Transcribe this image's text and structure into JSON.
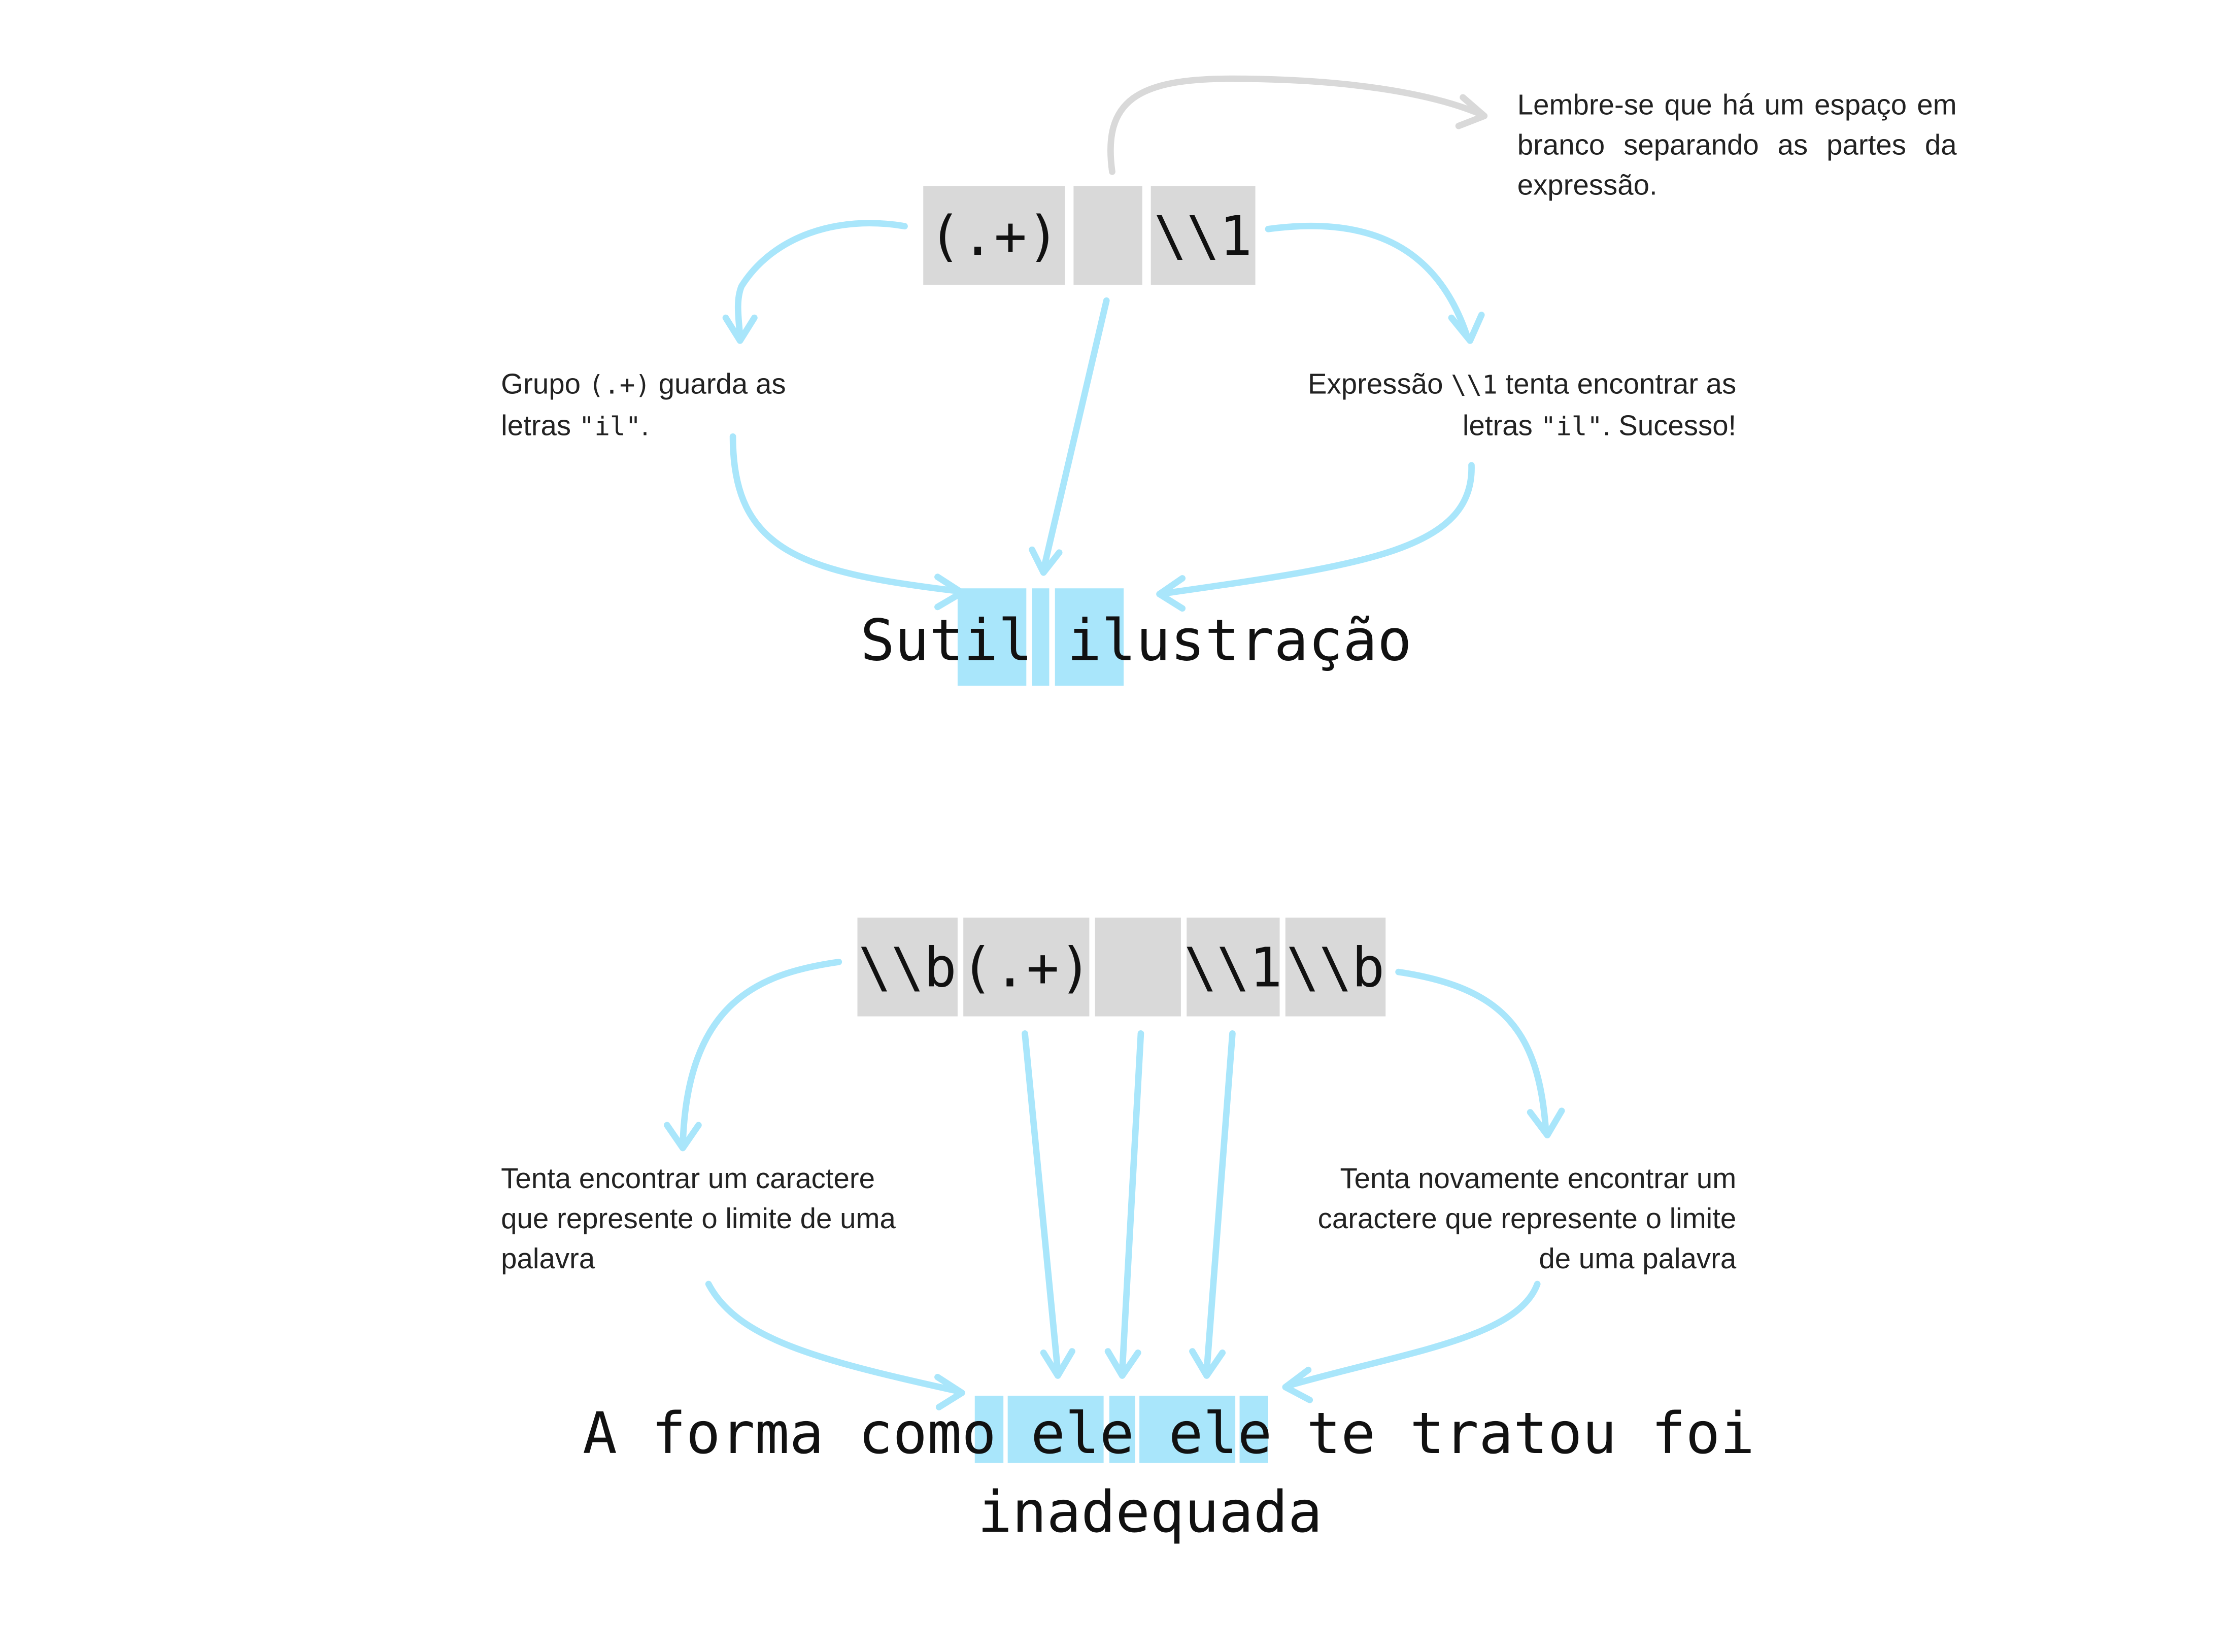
{
  "top": {
    "regex_boxes": [
      "(.+)",
      "",
      "\\\\1"
    ],
    "note_whitespace": "Lembre-se que há um espaço em branco separando as partes da expressão.",
    "note_left": {
      "pre": "Grupo ",
      "code1": "(.+)",
      "mid": " guarda as letras ",
      "code2": "\"il\"",
      "post": "."
    },
    "note_right": {
      "pre": "Expressão ",
      "code1": "\\\\1",
      "mid": " tenta encontrar as letras ",
      "code2": "\"il\"",
      "post": ". Sucesso!"
    },
    "sentence": "Sutil ilustração"
  },
  "bottom": {
    "regex_boxes": [
      "\\\\b",
      "(.+)",
      "",
      "\\\\1",
      "\\\\b"
    ],
    "note_left": "Tenta encontrar um caractere que represente o limite de uma palavra",
    "note_right": "Tenta novamente encontrar um caractere que represente o limite de uma palavra",
    "sentence_line1": "A forma como ele ele te tratou foi",
    "sentence_line2": "inadequada"
  },
  "colors": {
    "highlight": "#a9e6fb",
    "regex_box": "#d9d9d9",
    "arrow": "#a9e6fb",
    "note_arrow": "#d9d9d9"
  }
}
